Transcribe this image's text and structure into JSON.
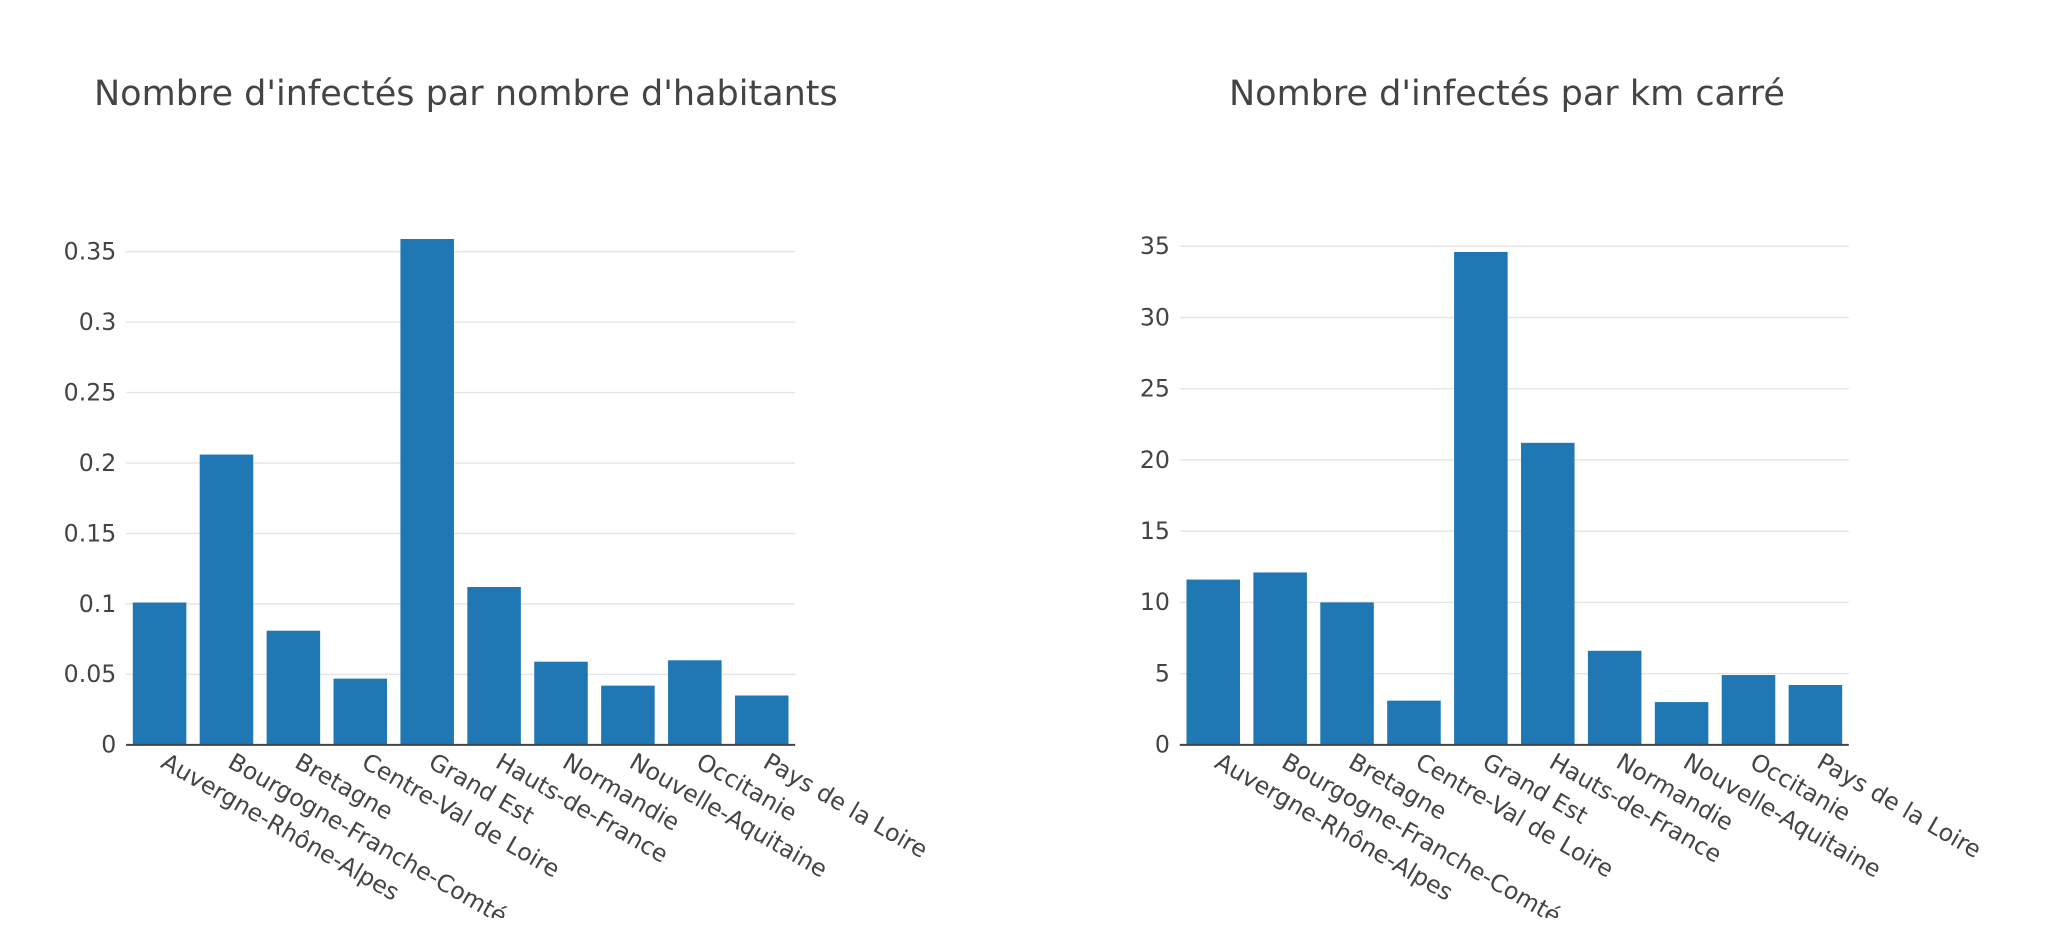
{
  "theme": {
    "bar_color": "#1f77b4",
    "grid_color": "#e6e6e6",
    "axis_color": "#444444",
    "text_color": "#444444"
  },
  "chart_data": [
    {
      "type": "bar",
      "title": "Nombre d'infectés par nombre d'habitants",
      "categories": [
        "Auvergne-Rhône-Alpes",
        "Bourgogne-Franche-Comté",
        "Bretagne",
        "Centre-Val de Loire",
        "Grand Est",
        "Hauts-de-France",
        "Normandie",
        "Nouvelle-Aquitaine",
        "Occitanie",
        "Pays de la Loire"
      ],
      "values": [
        0.101,
        0.206,
        0.081,
        0.047,
        0.359,
        0.112,
        0.059,
        0.042,
        0.06,
        0.035
      ],
      "ylim": [
        0,
        0.368
      ],
      "yticks": [
        0,
        0.05,
        0.1,
        0.15,
        0.2,
        0.25,
        0.3,
        0.35
      ],
      "ytick_labels": [
        "0",
        "0.05",
        "0.1",
        "0.15",
        "0.2",
        "0.25",
        "0.3",
        "0.35"
      ],
      "grid": true
    },
    {
      "type": "bar",
      "title": "Nombre d'infectés par km carré",
      "categories": [
        "Auvergne-Rhône-Alpes",
        "Bourgogne-Franche-Comté",
        "Bretagne",
        "Centre-Val de Loire",
        "Grand Est",
        "Hauts-de-France",
        "Normandie",
        "Nouvelle-Aquitaine",
        "Occitanie",
        "Pays de la Loire"
      ],
      "values": [
        11.6,
        12.1,
        10.0,
        3.1,
        34.6,
        21.2,
        6.6,
        3.0,
        4.9,
        4.2
      ],
      "ylim": [
        0,
        36.4
      ],
      "yticks": [
        0,
        5,
        10,
        15,
        20,
        25,
        30,
        35
      ],
      "ytick_labels": [
        "0",
        "5",
        "10",
        "15",
        "20",
        "25",
        "30",
        "35"
      ],
      "grid": true
    }
  ]
}
